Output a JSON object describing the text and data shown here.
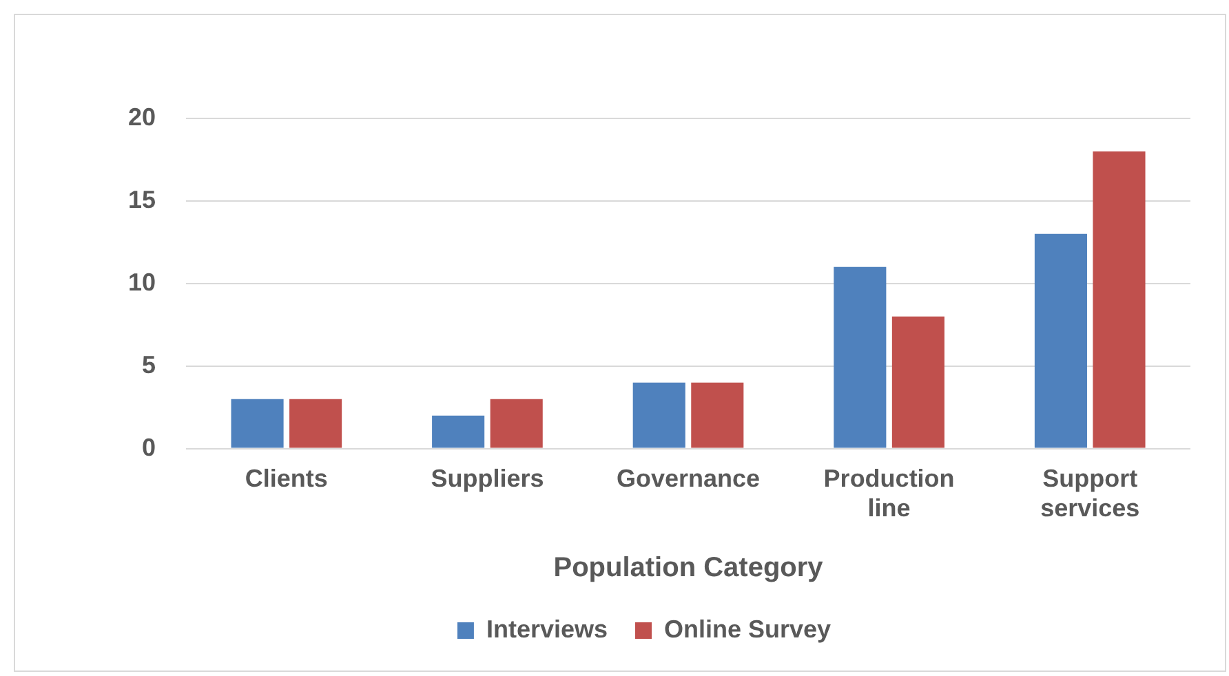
{
  "chart_data": {
    "type": "bar",
    "xlabel": "Population Category",
    "categories": [
      "Clients",
      "Suppliers",
      "Governance",
      "Production line",
      "Support services"
    ],
    "series": [
      {
        "name": "Interviews",
        "color": "#4f81bd",
        "values": [
          3,
          2,
          4,
          11,
          13
        ]
      },
      {
        "name": "Online Survey",
        "color": "#c0504d",
        "values": [
          3,
          3,
          4,
          8,
          18
        ]
      }
    ],
    "ylim": [
      0,
      20
    ],
    "yticks": [
      0,
      5,
      10,
      15,
      20
    ],
    "grid": "y",
    "legend": "bottom"
  }
}
